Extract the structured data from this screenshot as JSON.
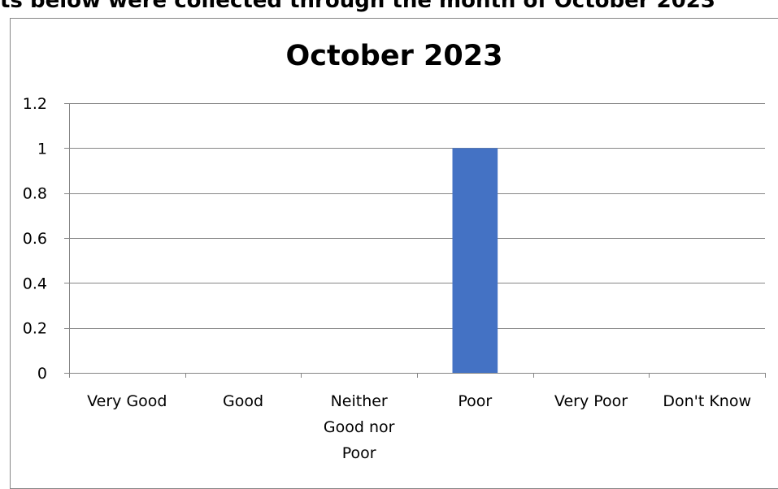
{
  "page": {
    "heading": "ts below were collected through the month of October 2023"
  },
  "colors": {
    "bar": "#4472C4",
    "gridline": "#868686",
    "axis": "#868686",
    "frame": "#868686"
  },
  "chart_data": {
    "type": "bar",
    "title": "October  2023",
    "xlabel": "",
    "ylabel": "",
    "categories": [
      "Very Good",
      "Good",
      "Neither Good nor Poor",
      "Poor",
      "Very Poor",
      "Don't Know"
    ],
    "category_label_lines": [
      [
        "Very Good"
      ],
      [
        "Good"
      ],
      [
        "Neither",
        "Good nor",
        "Poor"
      ],
      [
        "Poor"
      ],
      [
        "Very Poor"
      ],
      [
        "Don't Know"
      ]
    ],
    "values": [
      0,
      0,
      0,
      1,
      0,
      0
    ],
    "ylim": [
      0,
      1.2
    ],
    "yticks": [
      0,
      0.2,
      0.4,
      0.6,
      0.8,
      1,
      1.2
    ],
    "ytick_labels": [
      "0",
      "0.2",
      "0.4",
      "0.6",
      "0.8",
      "1",
      "1.2"
    ],
    "grid": true,
    "legend": "none"
  }
}
